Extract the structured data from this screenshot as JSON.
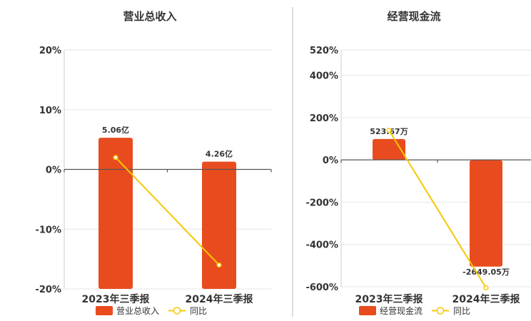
{
  "colors": {
    "bar": "#e84c1e",
    "line": "#f5c800",
    "marker_fill": "#ffffff"
  },
  "chart_data": [
    {
      "type": "bar",
      "title": "营业总收入",
      "categories": [
        "2023年三季报",
        "2024年三季报"
      ],
      "series": [
        {
          "name": "营业总收入",
          "kind": "bar",
          "axis": "left",
          "values": [
            5.06,
            4.26
          ],
          "labels": [
            "5.06亿",
            "4.26亿"
          ]
        },
        {
          "name": "同比",
          "kind": "line",
          "axis": "right",
          "values": [
            2.0,
            -16.0
          ]
        }
      ],
      "left_axis": {
        "min": 0,
        "max": 8.0
      },
      "right_axis": {
        "min": -20,
        "max": 20,
        "ticks": [
          -20,
          -10,
          0,
          10,
          20
        ],
        "tick_labels": [
          "-20%",
          "-10%",
          "0%",
          "10%",
          "20%"
        ]
      },
      "legend": {
        "placement": "bottom",
        "items": [
          "营业总收入",
          "同比"
        ]
      },
      "grid": true
    },
    {
      "type": "bar",
      "title": "经营现金流",
      "categories": [
        "2023年三季报",
        "2024年三季报"
      ],
      "series": [
        {
          "name": "经营现金流",
          "kind": "bar",
          "axis": "left",
          "values": [
            523.67,
            -2649.05
          ],
          "labels": [
            "523.67万",
            "-2649.05万"
          ]
        },
        {
          "name": "同比",
          "kind": "line",
          "axis": "right",
          "values": [
            140,
            -605
          ]
        }
      ],
      "left_axis": {
        "min": -3150,
        "max": 2740
      },
      "right_axis": {
        "min": -600,
        "max": 520,
        "ticks": [
          -600,
          -400,
          -200,
          0,
          200,
          400,
          520
        ],
        "tick_labels": [
          "-600%",
          "-400%",
          "-200%",
          "0%",
          "200%",
          "400%",
          "520%"
        ]
      },
      "legend": {
        "placement": "bottom",
        "items": [
          "经营现金流",
          "同比"
        ]
      },
      "grid": true
    }
  ]
}
